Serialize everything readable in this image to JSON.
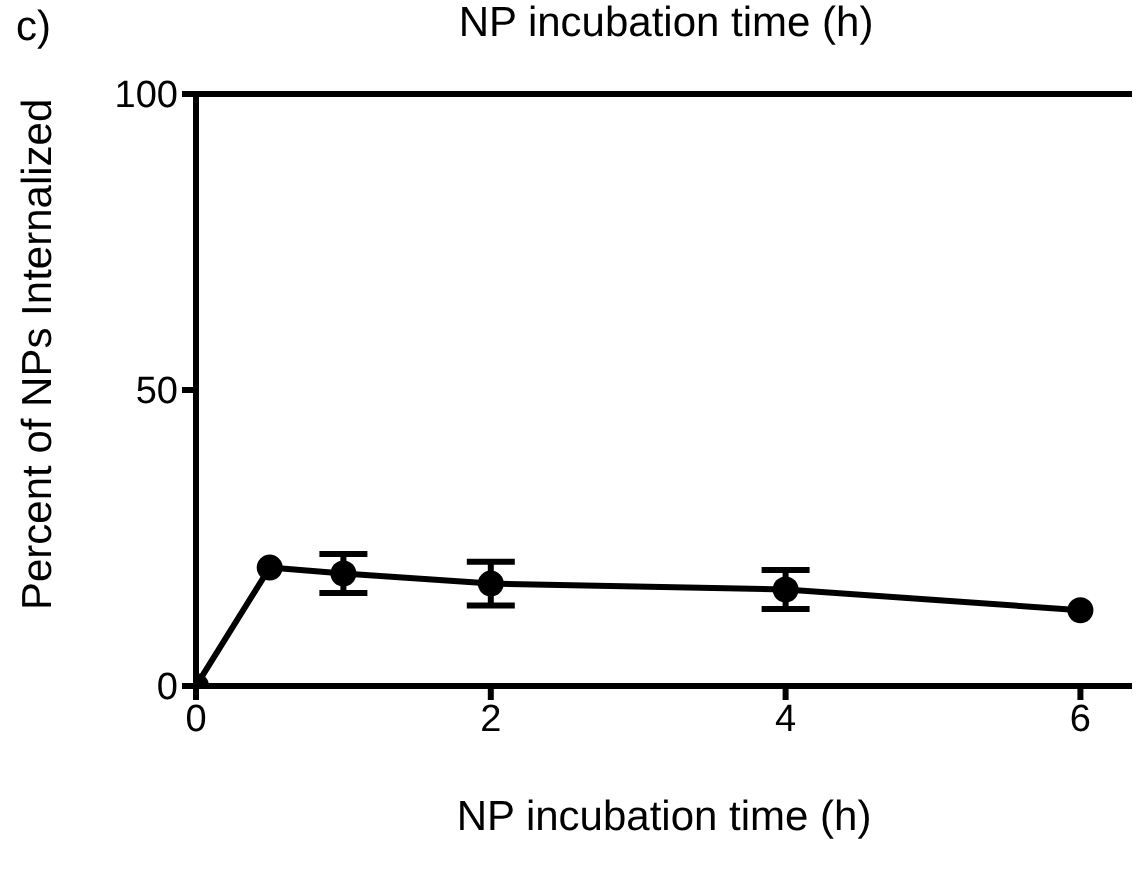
{
  "chart_data": {
    "type": "line",
    "title": "NP incubation time (h)",
    "xlabel": "NP incubation time (h)",
    "ylabel": "Percent of NPs Internalized",
    "annotations": [
      "c)"
    ],
    "x": [
      0,
      0.5,
      1,
      2,
      4,
      6
    ],
    "series": [
      {
        "color": "#000000",
        "values": [
          0,
          20,
          19,
          17.3,
          16.3,
          12.8
        ],
        "errors": [
          null,
          null,
          3.3,
          3.7,
          3.3,
          null
        ]
      }
    ],
    "xlim": [
      0,
      6.35
    ],
    "xticks": [
      0,
      2,
      4,
      6
    ],
    "ylim": [
      0,
      100
    ],
    "yticks": [
      0,
      50,
      100
    ],
    "marker": "circle",
    "line_style": "solid"
  }
}
